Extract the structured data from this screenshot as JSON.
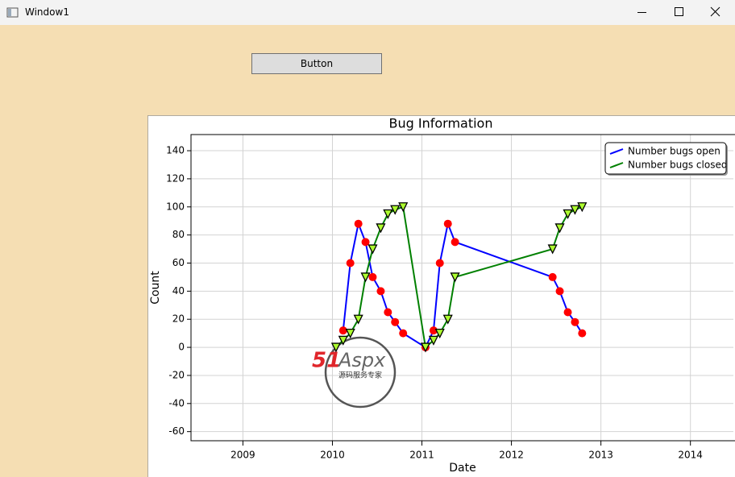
{
  "window": {
    "title": "Window1",
    "button": "Button"
  },
  "watermark": {
    "brand_number": "51",
    "brand_name": "Aspx",
    "tagline": "源码服务专家"
  },
  "chart_data": {
    "type": "line",
    "title": "Bug Information",
    "x_label": "Date",
    "y_label": "Count",
    "xlim": [
      2008.42,
      2014.48
    ],
    "xticks": [
      2009,
      2010,
      2011,
      2012,
      2013,
      2014
    ],
    "ylim": [
      -66.5,
      151.5
    ],
    "yticks": [
      -60,
      -40,
      -20,
      0,
      20,
      40,
      60,
      80,
      100,
      120,
      140
    ],
    "grid": true,
    "legend": "top-right",
    "series": [
      {
        "name": "Number bugs open",
        "color": "#0000ff",
        "marker": "circle",
        "marker_color": "#ff0000",
        "x": [
          2010.12,
          2010.2,
          2010.29,
          2010.37,
          2010.45,
          2010.54,
          2010.62,
          2010.7,
          2010.79,
          2011.04,
          2011.13,
          2011.2,
          2011.29,
          2011.37,
          2012.46,
          2012.54,
          2012.63,
          2012.71,
          2012.79
        ],
        "values": [
          12,
          60,
          88,
          75,
          50,
          40,
          25,
          18,
          10,
          0,
          12,
          60,
          88,
          75,
          50,
          40,
          25,
          18,
          10
        ]
      },
      {
        "name": "Number bugs closed",
        "color": "#008000",
        "marker": "triangle",
        "marker_color": "#adff2f",
        "x": [
          2010.04,
          2010.12,
          2010.2,
          2010.29,
          2010.37,
          2010.45,
          2010.54,
          2010.62,
          2010.7,
          2010.79,
          2011.04,
          2011.13,
          2011.2,
          2011.29,
          2011.37,
          2012.46,
          2012.54,
          2012.63,
          2012.71,
          2012.79
        ],
        "values": [
          0,
          5,
          10,
          20,
          50,
          70,
          85,
          95,
          98,
          100,
          0,
          5,
          10,
          20,
          50,
          70,
          85,
          95,
          98,
          100
        ]
      }
    ]
  }
}
